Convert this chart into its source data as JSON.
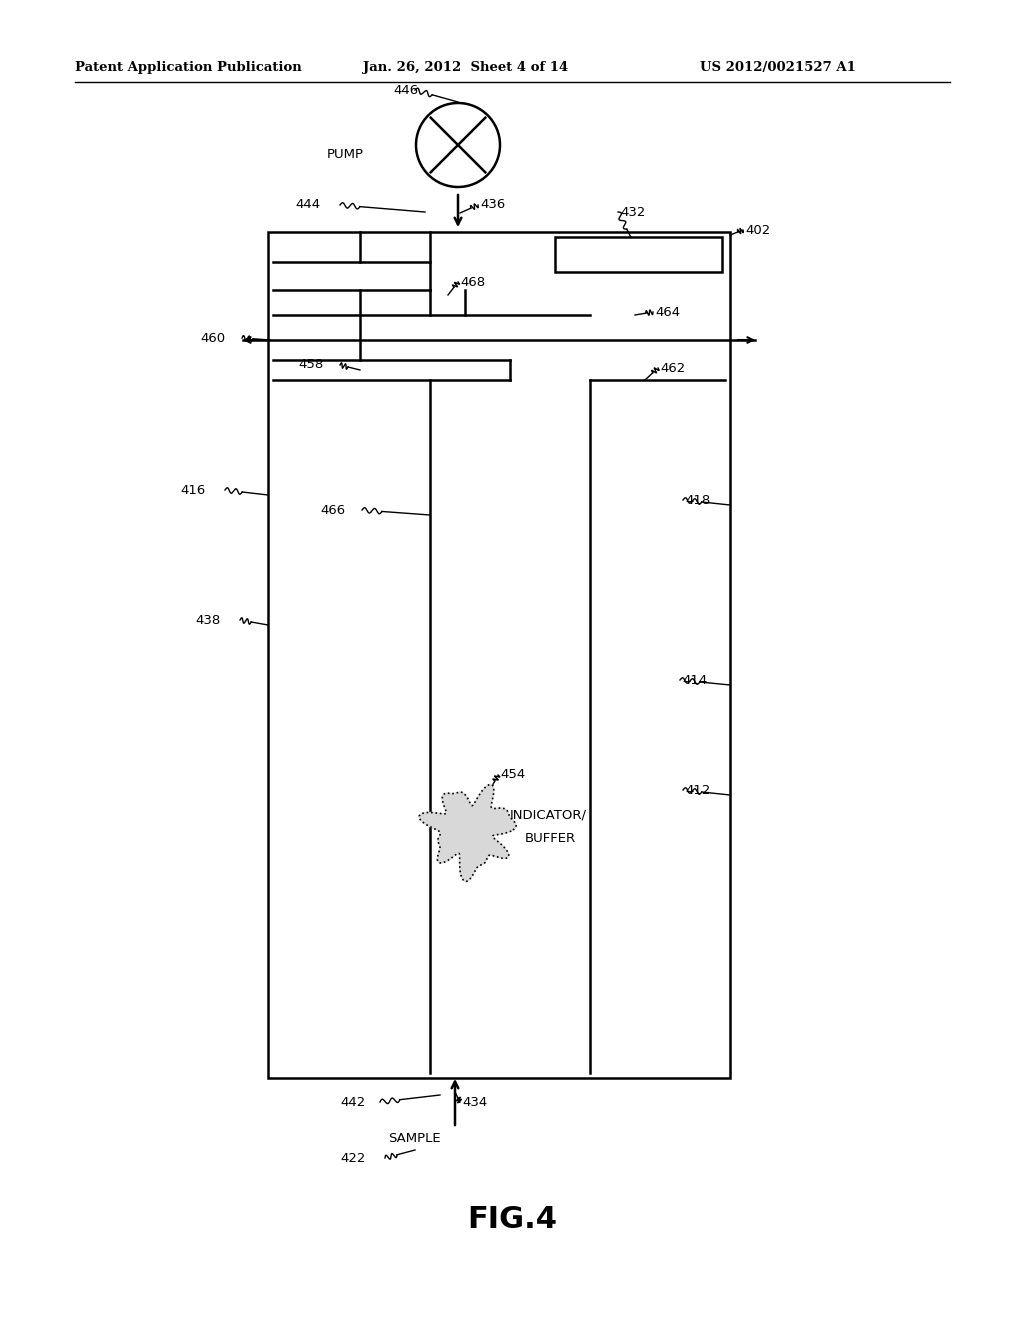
{
  "bg_color": "#ffffff",
  "header_left": "Patent Application Publication",
  "header_mid": "Jan. 26, 2012  Sheet 4 of 14",
  "header_right": "US 2012/0021527 A1",
  "fig_label": "FIG.4"
}
